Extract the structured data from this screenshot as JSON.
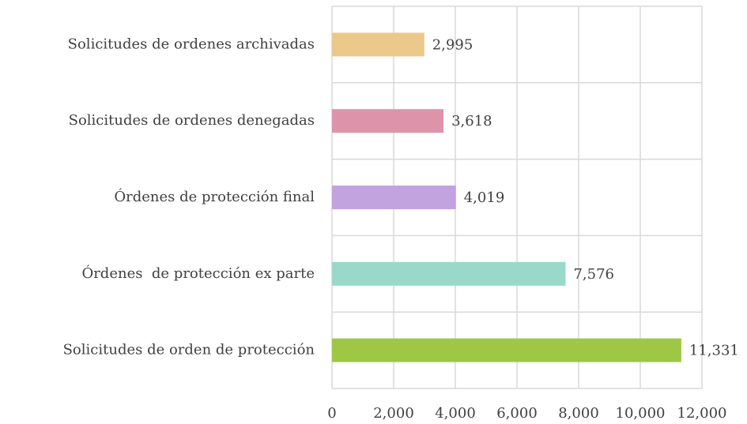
{
  "chart_data": {
    "type": "barh",
    "categories": [
      "Solicitudes de ordenes archivadas",
      "Solicitudes de ordenes denegadas",
      "Órdenes de protección final",
      "Órdenes  de protección ex parte",
      "Solicitudes de orden de protección"
    ],
    "values": [
      2995,
      3618,
      4019,
      7576,
      11331
    ],
    "value_labels": [
      "2,995",
      "3,618",
      "4,019",
      "7,576",
      "11,331"
    ],
    "colors": [
      "#ecc88a",
      "#dd94ab",
      "#c3a2e0",
      "#98d9c9",
      "#9dc745"
    ],
    "xlim": [
      0,
      12000
    ],
    "xticks": [
      0,
      {
        "value": 2000,
        "label": "2,000"
      },
      {
        "value": 4000,
        "label": "4,000"
      },
      {
        "value": 6000,
        "label": "6,000"
      },
      {
        "value": 8000,
        "label": "8,000"
      },
      {
        "value": 10000,
        "label": "10,000"
      },
      {
        "value": 12000,
        "label": "12,000"
      }
    ],
    "grid": true
  }
}
